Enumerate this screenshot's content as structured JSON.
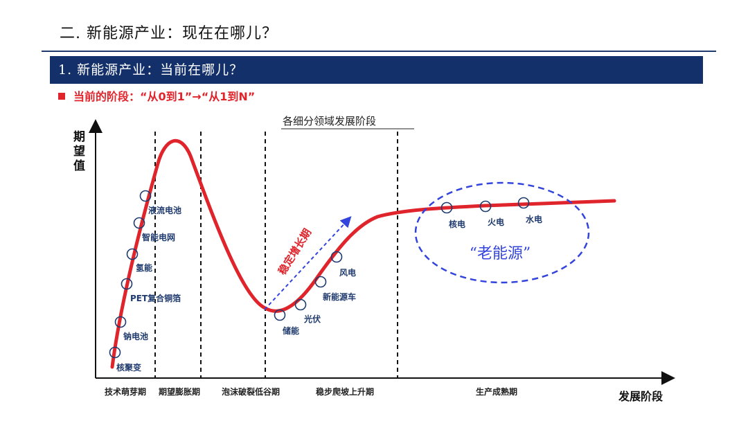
{
  "header": {
    "title": "二. 新能源产业：现在在哪儿？"
  },
  "section": {
    "title": "1. 新能源产业：当前在哪儿？"
  },
  "stage_line": {
    "text": "当前的阶段：“从0到1”→“从1到N”"
  },
  "diagram": {
    "subtitle": "各细分领域发展阶段",
    "y_axis_label": [
      "期",
      "望",
      "值"
    ],
    "x_axis_label": "发展阶段",
    "phases": [
      "技术萌芽期",
      "期望膨胀期",
      "泡沫破裂低谷期",
      "稳步爬坡上升期",
      "生产成熟期"
    ],
    "growth_arrow_label": "稳定增长期",
    "old_energy_label": "“老能源”",
    "technologies": [
      {
        "label": "核聚变"
      },
      {
        "label": "钠电池"
      },
      {
        "label": "PET复合铜箔"
      },
      {
        "label": "氢能"
      },
      {
        "label": "智能电网"
      },
      {
        "label": "液流电池"
      },
      {
        "label": "储能"
      },
      {
        "label": "光伏"
      },
      {
        "label": "新能源车"
      },
      {
        "label": "风电"
      },
      {
        "label": "核电"
      },
      {
        "label": "火电"
      },
      {
        "label": "水电"
      }
    ],
    "colors": {
      "curve": "#e0242b",
      "accent_blue": "#3344dd",
      "text_blue": "#1f3a6e",
      "header_bar": "#14306a"
    }
  }
}
